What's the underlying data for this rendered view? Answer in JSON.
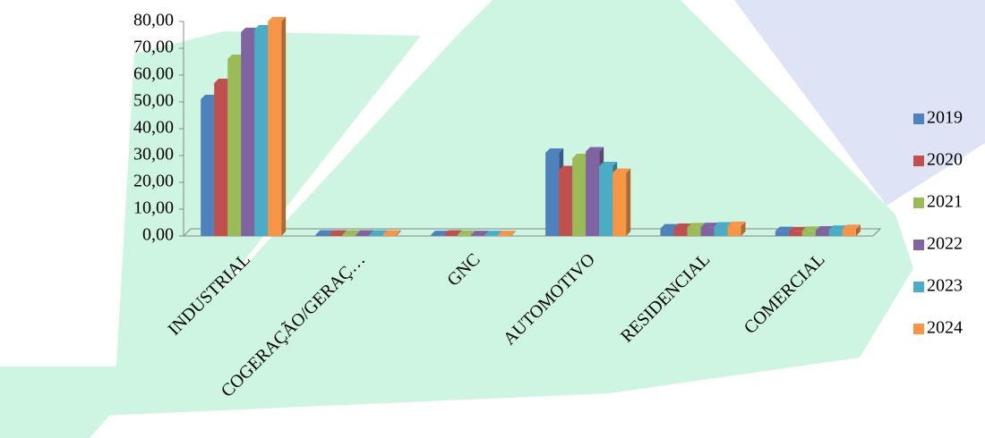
{
  "chart_data": {
    "type": "bar3d",
    "categories": [
      "INDUSTRIAL",
      "COGERAÇÃO/GERAÇ…",
      "GNC",
      "AUTOMOTIVO",
      "RESIDENCIAL",
      "COMERCIAL"
    ],
    "series": [
      {
        "name": "2019",
        "color": "#4f81bd",
        "values": [
          51,
          0.5,
          0.3,
          31,
          2.8,
          1.8
        ]
      },
      {
        "name": "2020",
        "color": "#c0504d",
        "values": [
          57,
          0.5,
          0.5,
          24.5,
          3.0,
          1.7
        ]
      },
      {
        "name": "2021",
        "color": "#9bbb59",
        "values": [
          66,
          0.5,
          0.4,
          29,
          3.2,
          1.9
        ]
      },
      {
        "name": "2022",
        "color": "#8064a2",
        "values": [
          76,
          0.5,
          0.3,
          31.5,
          3.3,
          2.0
        ]
      },
      {
        "name": "2023",
        "color": "#4bacc6",
        "values": [
          77,
          0.5,
          0.3,
          26,
          3.5,
          2.3
        ]
      },
      {
        "name": "2024",
        "color": "#f79646",
        "values": [
          80,
          0.5,
          0.3,
          23.5,
          3.7,
          2.6
        ]
      }
    ],
    "ylim": [
      0,
      80
    ],
    "yticks": [
      {
        "value": 0,
        "label": "0,00"
      },
      {
        "value": 10,
        "label": "10,00"
      },
      {
        "value": 20,
        "label": "20,00"
      },
      {
        "value": 30,
        "label": "30,00"
      },
      {
        "value": 40,
        "label": "40,00"
      },
      {
        "value": 50,
        "label": "50,00"
      },
      {
        "value": 60,
        "label": "60,00"
      },
      {
        "value": 70,
        "label": "70,00"
      },
      {
        "value": 80,
        "label": "80,00"
      }
    ],
    "legend": "right"
  }
}
